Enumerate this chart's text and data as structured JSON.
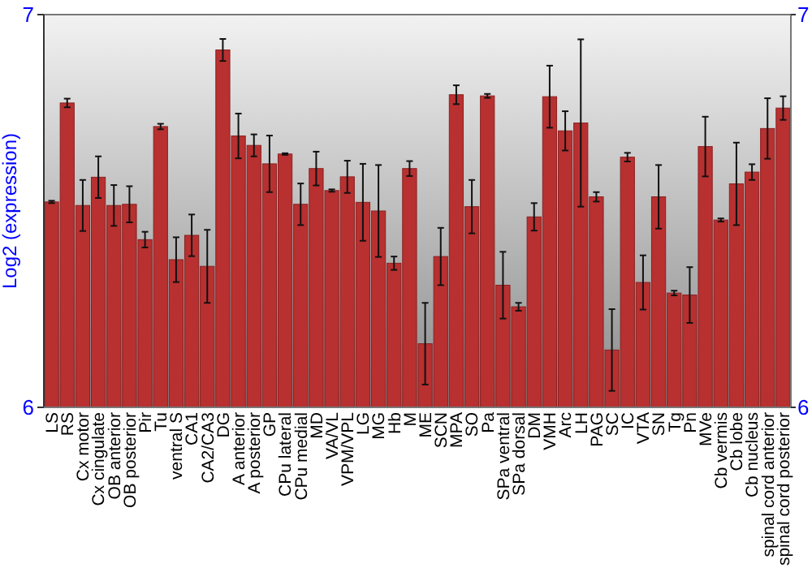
{
  "chart_data": {
    "type": "bar",
    "ylabel": "Log2 (expression)",
    "categories": [
      "LS",
      "RS",
      "Cx motor",
      "Cx cingulate",
      "OB anterior",
      "OB posterior",
      "Pir",
      "Tu",
      "ventral S",
      "CA1",
      "CA2/CA3",
      "DG",
      "A anterior",
      "A posterior",
      "GP",
      "CPu lateral",
      "CPu medial",
      "MD",
      "VA/VL",
      "VPM/VPL",
      "LG",
      "MG",
      "Hb",
      "M",
      "ME",
      "SCN",
      "MPA",
      "SO",
      "Pa",
      "SPa ventral",
      "SPa dorsal",
      "DM",
      "VMH",
      "Arc",
      "LH",
      "PAG",
      "SC",
      "IC",
      "VTA",
      "SN",
      "Tg",
      "Pn",
      "MVe",
      "Cb vermis",
      "Cb lobe",
      "Cb nucleus",
      "spinal cord anterior",
      "spinal cord posterior"
    ],
    "values": [
      6.523,
      6.775,
      6.514,
      6.586,
      6.514,
      6.517,
      6.427,
      6.715,
      6.376,
      6.438,
      6.359,
      6.91,
      6.691,
      6.667,
      6.62,
      6.645,
      6.517,
      6.608,
      6.552,
      6.587,
      6.522,
      6.5,
      6.367,
      6.608,
      6.162,
      6.384,
      6.796,
      6.511,
      6.793,
      6.311,
      6.256,
      6.485,
      6.791,
      6.704,
      6.724,
      6.536,
      6.146,
      6.637,
      6.318,
      6.536,
      6.291,
      6.286,
      6.664,
      6.477,
      6.569,
      6.599,
      6.71,
      6.762
    ],
    "errors": [
      0.003,
      0.011,
      0.065,
      0.053,
      0.052,
      0.046,
      0.02,
      0.007,
      0.057,
      0.053,
      0.093,
      0.028,
      0.057,
      0.028,
      0.072,
      0.002,
      0.053,
      0.043,
      0.003,
      0.041,
      0.098,
      0.117,
      0.017,
      0.019,
      0.104,
      0.073,
      0.024,
      0.068,
      0.005,
      0.085,
      0.01,
      0.035,
      0.079,
      0.05,
      0.213,
      0.012,
      0.104,
      0.011,
      0.069,
      0.081,
      0.006,
      0.071,
      0.076,
      0.004,
      0.105,
      0.02,
      0.077,
      0.03
    ],
    "color": "#b83030",
    "ylim": [
      6,
      7
    ],
    "yticks": [
      6,
      7
    ],
    "y2lim": [
      6,
      7
    ],
    "y2ticks": [
      6,
      7
    ]
  }
}
